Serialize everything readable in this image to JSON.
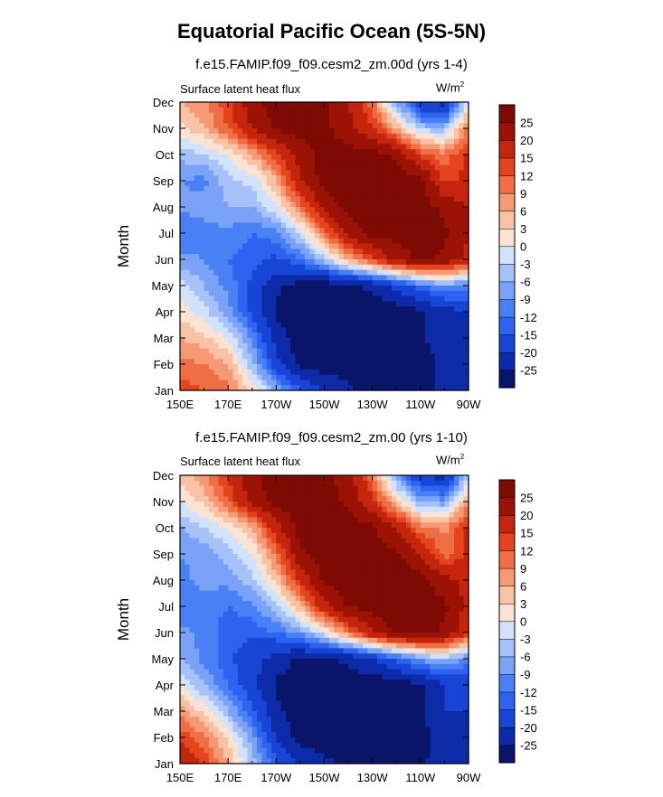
{
  "title": "Equatorial Pacific Ocean (5S-5N)",
  "chart_data": [
    {
      "type": "heatmap",
      "title": "f.e15.FAMIP.f09_f09.cesm2_zm.00d (yrs 1-4)",
      "left_label": "Surface latent heat flux",
      "units_main": "W/m",
      "units_sup": "2",
      "ylabel": "Month",
      "xlabel": "",
      "x_ticks": [
        "150E",
        "170E",
        "170W",
        "150W",
        "130W",
        "110W",
        "90W"
      ],
      "x_range": [
        150,
        270
      ],
      "y_ticks": [
        "Jan",
        "Feb",
        "Mar",
        "Apr",
        "May",
        "Jun",
        "Jul",
        "Aug",
        "Sep",
        "Oct",
        "Nov",
        "Dec"
      ],
      "y_range": [
        1,
        12
      ],
      "contour_levels": [
        -25,
        -20,
        -15,
        -12,
        -9,
        -6,
        -3,
        0,
        3,
        6,
        9,
        12,
        15,
        20,
        25
      ],
      "colorbar_labels": [
        "25",
        "20",
        "15",
        "12",
        "9",
        "6",
        "3",
        "0",
        "-3",
        "-6",
        "-9",
        "-12",
        "-15",
        "-20",
        "-25"
      ],
      "grid_x": [
        150,
        160,
        170,
        180,
        190,
        200,
        210,
        220,
        230,
        240,
        250,
        260,
        270
      ],
      "grid_y": [
        1,
        2,
        3,
        4,
        5,
        6,
        7,
        8,
        9,
        10,
        11,
        12
      ],
      "z": [
        [
          14,
          12,
          10,
          2,
          -6,
          -14,
          -20,
          -24,
          -27,
          -28,
          -26,
          -24,
          -22
        ],
        [
          10,
          9,
          6,
          -5,
          -18,
          -27,
          -28,
          -28,
          -28,
          -28,
          -27,
          -24,
          -22
        ],
        [
          6,
          4,
          0,
          -10,
          -22,
          -28,
          -28,
          -28,
          -28,
          -28,
          -26,
          -22,
          -22
        ],
        [
          2,
          -2,
          -8,
          -16,
          -26,
          -28,
          -28,
          -28,
          -28,
          -28,
          -26,
          -22,
          -20
        ],
        [
          -2,
          -6,
          -10,
          -16,
          -24,
          -27,
          -28,
          -26,
          -24,
          -18,
          -12,
          -8,
          -10
        ],
        [
          -8,
          -9,
          -12,
          -14,
          -16,
          -12,
          -4,
          6,
          14,
          22,
          26,
          24,
          18
        ],
        [
          -12,
          -10,
          -10,
          -12,
          -10,
          -2,
          10,
          22,
          27,
          27,
          27,
          26,
          20
        ],
        [
          -8,
          -8,
          -6,
          -6,
          0,
          10,
          22,
          27,
          27,
          27,
          27,
          24,
          20
        ],
        [
          -9,
          -10,
          -4,
          -2,
          6,
          20,
          27,
          27,
          27,
          27,
          27,
          14,
          16
        ],
        [
          -5,
          -3,
          0,
          6,
          14,
          22,
          27,
          27,
          27,
          24,
          14,
          10,
          16
        ],
        [
          2,
          6,
          12,
          20,
          26,
          27,
          26,
          22,
          16,
          6,
          -4,
          -6,
          10
        ],
        [
          6,
          8,
          14,
          24,
          27,
          27,
          26,
          20,
          10,
          -6,
          -20,
          -22,
          0
        ]
      ]
    },
    {
      "type": "heatmap",
      "title": "f.e15.FAMIP.f09_f09.cesm2_zm.00 (yrs 1-10)",
      "left_label": "Surface latent heat flux",
      "units_main": "W/m",
      "units_sup": "2",
      "ylabel": "Month",
      "xlabel": "",
      "x_ticks": [
        "150E",
        "170E",
        "170W",
        "150W",
        "130W",
        "110W",
        "90W"
      ],
      "x_range": [
        150,
        270
      ],
      "y_ticks": [
        "Jan",
        "Feb",
        "Mar",
        "Apr",
        "May",
        "Jun",
        "Jul",
        "Aug",
        "Sep",
        "Oct",
        "Nov",
        "Dec"
      ],
      "y_range": [
        1,
        12
      ],
      "contour_levels": [
        -25,
        -20,
        -15,
        -12,
        -9,
        -6,
        -3,
        0,
        3,
        6,
        9,
        12,
        15,
        20,
        25
      ],
      "colorbar_labels": [
        "25",
        "20",
        "15",
        "12",
        "9",
        "6",
        "3",
        "0",
        "-3",
        "-6",
        "-9",
        "-12",
        "-15",
        "-20",
        "-25"
      ],
      "grid_x": [
        150,
        160,
        170,
        180,
        190,
        200,
        210,
        220,
        230,
        240,
        250,
        260,
        270
      ],
      "grid_y": [
        1,
        2,
        3,
        4,
        5,
        6,
        7,
        8,
        9,
        10,
        11,
        12
      ],
      "z": [
        [
          20,
          14,
          6,
          -4,
          -14,
          -20,
          -24,
          -26,
          -27,
          -28,
          -26,
          -22,
          -24
        ],
        [
          14,
          10,
          2,
          -8,
          -20,
          -27,
          -28,
          -28,
          -28,
          -28,
          -27,
          -22,
          -22
        ],
        [
          8,
          2,
          -6,
          -14,
          -24,
          -28,
          -28,
          -28,
          -28,
          -28,
          -26,
          -20,
          -20
        ],
        [
          0,
          -6,
          -12,
          -18,
          -26,
          -28,
          -28,
          -28,
          -28,
          -28,
          -26,
          -20,
          -18
        ],
        [
          -6,
          -10,
          -14,
          -18,
          -22,
          -26,
          -26,
          -24,
          -20,
          -14,
          -8,
          -4,
          -10
        ],
        [
          -8,
          -10,
          -14,
          -14,
          -12,
          -8,
          0,
          10,
          20,
          26,
          27,
          24,
          16
        ],
        [
          -12,
          -10,
          -12,
          -10,
          -4,
          6,
          18,
          26,
          27,
          27,
          27,
          26,
          18
        ],
        [
          -10,
          -8,
          -8,
          -4,
          4,
          16,
          26,
          27,
          27,
          27,
          27,
          22,
          18
        ],
        [
          -9,
          -8,
          -4,
          0,
          10,
          24,
          27,
          27,
          27,
          26,
          20,
          10,
          16
        ],
        [
          -6,
          -3,
          0,
          6,
          18,
          27,
          27,
          27,
          26,
          20,
          10,
          8,
          16
        ],
        [
          0,
          4,
          12,
          22,
          27,
          27,
          27,
          24,
          16,
          4,
          -6,
          -8,
          8
        ],
        [
          4,
          8,
          16,
          24,
          27,
          27,
          27,
          22,
          10,
          -8,
          -20,
          -22,
          -4
        ]
      ]
    }
  ],
  "colors": {
    "levels_fill": [
      "#0a1468",
      "#0d2aa8",
      "#1745d6",
      "#2e62f0",
      "#4a80f5",
      "#7aa2f7",
      "#a6c2f9",
      "#d2e2fb",
      "#fbe3d4",
      "#f8c2a4",
      "#f59a74",
      "#f06e46",
      "#e5451e",
      "#c4250c",
      "#9c1205",
      "#7d0b03"
    ]
  }
}
